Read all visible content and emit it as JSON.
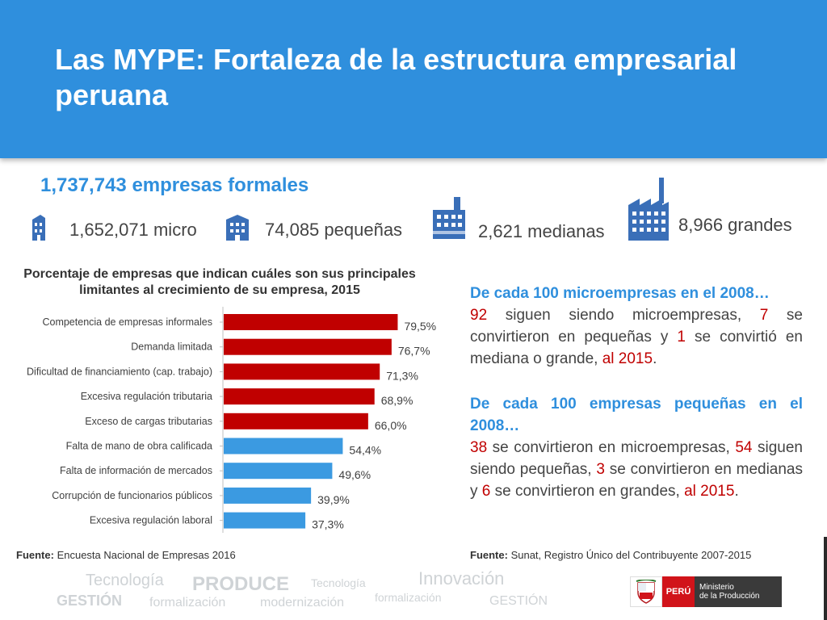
{
  "slide": {
    "title": "Las MYPE: Fortaleza de la estructura empresarial peruana"
  },
  "companies": {
    "total": "1,737,743 empresas formales",
    "micro": "1,652,071 micro",
    "small": "74,085  pequeñas",
    "medium": "2,621 medianas",
    "large": "8,966 grandes",
    "icons": [
      "building-small-icon",
      "building-medium-icon",
      "building-large-icon",
      "factory-icon"
    ],
    "icon_color": "#3a6fb8"
  },
  "chart_data": {
    "type": "bar",
    "orientation": "horizontal",
    "title": "Porcentaje de empresas que indican cuáles son sus principales limitantes al crecimiento de su empresa, 2015",
    "categories": [
      "Competencia de empresas informales",
      "Demanda limitada",
      "Dificultad de financiamiento (cap. trabajo)",
      "Excesiva regulación tributaria",
      "Exceso de cargas tributarias",
      "Falta de mano de obra calificada",
      "Falta de información de mercados",
      "Corrupción de funcionarios públicos",
      "Excesiva regulación laboral"
    ],
    "values": [
      79.5,
      76.7,
      71.3,
      68.9,
      66.0,
      54.4,
      49.6,
      39.9,
      37.3
    ],
    "value_labels": [
      "79,5%",
      "76,7%",
      "71,3%",
      "68,9%",
      "66,0%",
      "54,4%",
      "49,6%",
      "39,9%",
      "37,3%"
    ],
    "colors": [
      "#c00000",
      "#c00000",
      "#c00000",
      "#c00000",
      "#c00000",
      "#3b9ae1",
      "#3b9ae1",
      "#3b9ae1",
      "#3b9ae1"
    ],
    "xlim": [
      0,
      100
    ]
  },
  "sources": {
    "left_label": "Fuente:",
    "left_text": " Encuesta Nacional de Empresas  2016",
    "right_label": "Fuente:",
    "right_text": " Sunat, Registro Único del Contribuyente 2007-2015"
  },
  "micro_paragraph": {
    "heading": "De cada 100 microempresas en el 2008…",
    "n1": "92",
    "t1": " siguen siendo microempresas, ",
    "n2": "7",
    "t2": " se convirtieron en pequeñas y ",
    "n3": "1",
    "t3": " se convirtió en mediana o grande, ",
    "end": "al 2015",
    "dot": "."
  },
  "small_paragraph": {
    "heading": "De cada 100 empresas pequeñas en el 2008…",
    "n1": "38",
    "t1": " se convirtieron en microempresas, ",
    "n2": "54",
    "t2": " siguen siendo pequeñas, ",
    "n3": "3",
    "t3": " se convirtieron en medianas y ",
    "n4": "6",
    "t4": " se convirtieron en grandes, ",
    "end": "al 2015",
    "dot": "."
  },
  "footer": {
    "watermarks": [
      "Tecnología",
      "PRODUCE",
      "Tecnología",
      "Innovación",
      "GESTIÓN",
      "formalización",
      "modernización",
      "formalización",
      "GESTIÓN"
    ],
    "logo": {
      "country": "PERÚ",
      "ministry_line1": "Ministerio",
      "ministry_line2": "de la Producción",
      "colors": {
        "red": "#d1131a",
        "dark": "#3a3a3a"
      }
    }
  },
  "colors": {
    "header_blue": "#2f8fdd",
    "accent_red": "#c00000",
    "bar_blue": "#3b9ae1"
  }
}
